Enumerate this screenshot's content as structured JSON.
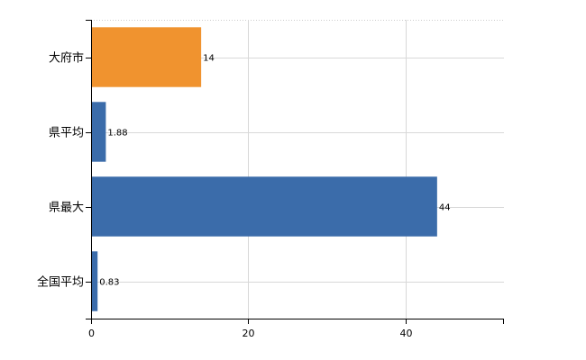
{
  "chart_data": {
    "type": "bar",
    "orientation": "horizontal",
    "categories": [
      "大府市",
      "県平均",
      "県最大",
      "全国平均"
    ],
    "values": [
      14,
      1.88,
      44,
      0.83
    ],
    "value_labels": [
      "14",
      "1.88",
      "44",
      "0.83"
    ],
    "bar_colors": [
      "#f0932f",
      "#3b6caa",
      "#3b6caa",
      "#3b6caa"
    ],
    "x_ticks": [
      0,
      20,
      40
    ],
    "x_tick_labels": [
      "0",
      "20",
      "40"
    ],
    "xlim": [
      0,
      52.5
    ],
    "grid": true,
    "title": "",
    "xlabel": "",
    "ylabel": ""
  }
}
